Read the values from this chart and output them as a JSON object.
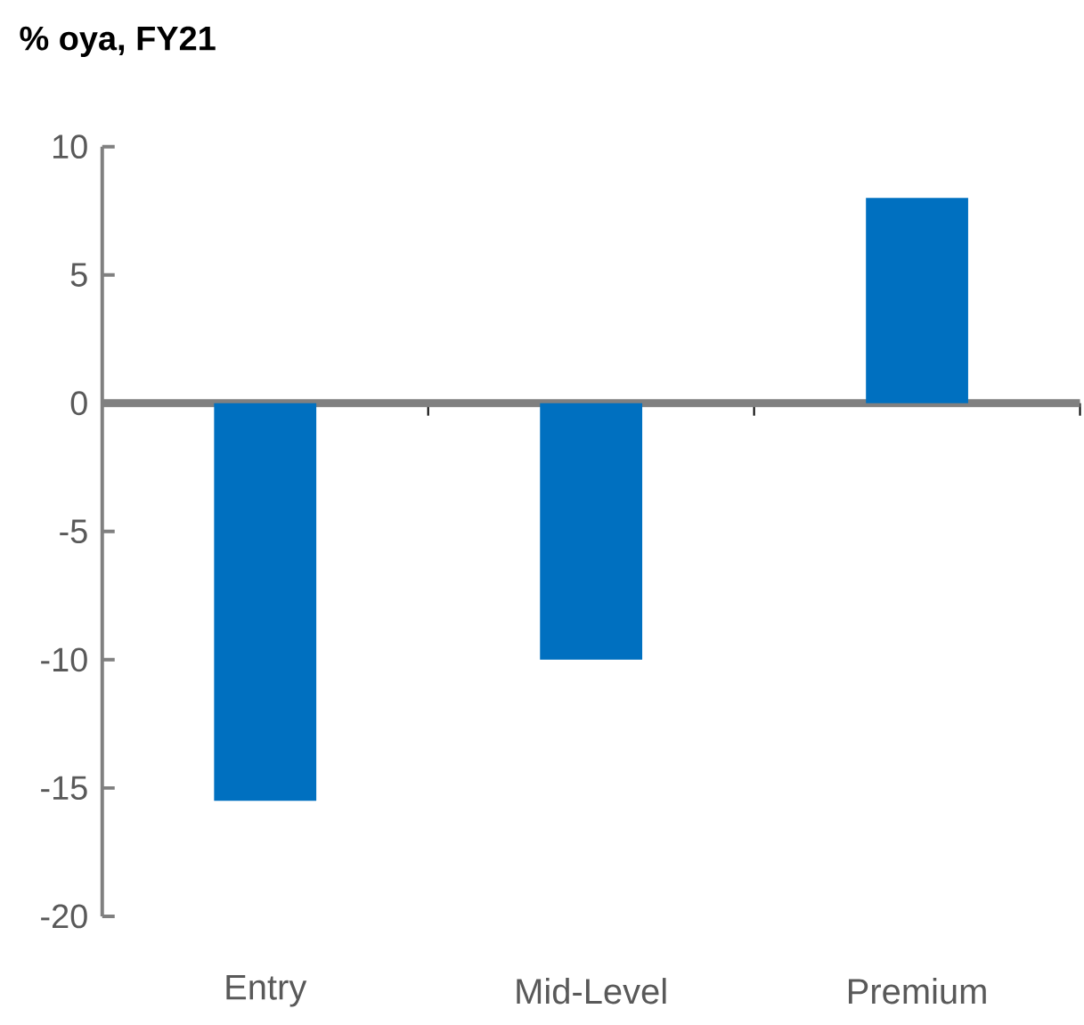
{
  "chart_data": {
    "type": "bar",
    "ylabel": "% oya, FY21",
    "categories": [
      "Entry",
      "Mid-Level",
      "Premium"
    ],
    "values": [
      -15.5,
      -10,
      8
    ],
    "color": "#0070c0",
    "ylim": [
      -20,
      10
    ],
    "yticks": [
      -20,
      -15,
      -10,
      -5,
      0,
      5,
      10
    ]
  }
}
